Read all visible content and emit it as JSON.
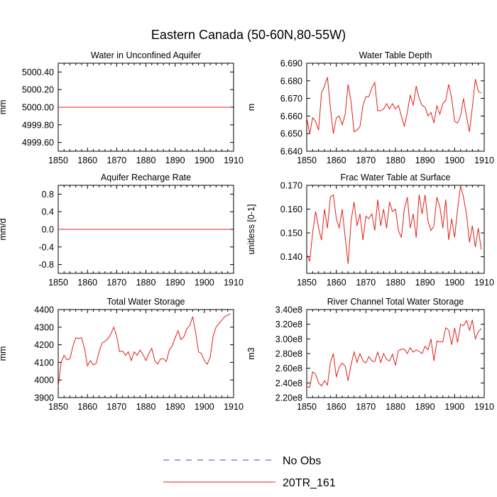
{
  "figure_title": "Eastern Canada (50-60N,80-55W)",
  "series_colors": {
    "obs": "#4444aa",
    "model": "#e0201b"
  },
  "legend": {
    "items": [
      {
        "label": "No Obs",
        "style": "dashed"
      },
      {
        "label": "20TR_161",
        "style": "solid"
      }
    ]
  },
  "chart_data": [
    {
      "type": "line",
      "title": "Water in Unconfined Aquifer",
      "ylabel": "mm",
      "xlim": [
        1850,
        1910
      ],
      "ylim": [
        4999.5,
        5000.5
      ],
      "xticks": [
        1850,
        1860,
        1870,
        1880,
        1890,
        1900,
        1910
      ],
      "yticks": [
        4999.6,
        4999.8,
        5000.0,
        5000.2,
        5000.4
      ],
      "ytick_labels": [
        "4999.60",
        "4999.80",
        "5000.00",
        "5000.20",
        "5000.40"
      ],
      "series": [
        {
          "name": "20TR_161",
          "x_start": 1850,
          "x_step": 1,
          "values": [
            5000.0,
            5000.0,
            5000.0,
            5000.0,
            5000.0,
            5000.0,
            5000.0,
            5000.0,
            5000.0,
            5000.0,
            5000.0,
            5000.0,
            5000.0,
            5000.0,
            5000.0,
            5000.0,
            5000.0,
            5000.0,
            5000.0,
            5000.0,
            5000.0,
            5000.0,
            5000.0,
            5000.0,
            5000.0,
            5000.0,
            5000.0,
            5000.0,
            5000.0,
            5000.0,
            5000.0,
            5000.0,
            5000.0,
            5000.0,
            5000.0,
            5000.0,
            5000.0,
            5000.0,
            5000.0,
            5000.0,
            5000.0,
            5000.0,
            5000.0,
            5000.0,
            5000.0,
            5000.0,
            5000.0,
            5000.0,
            5000.0,
            5000.0,
            5000.0,
            5000.0,
            5000.0,
            5000.0,
            5000.0,
            5000.0,
            5000.0,
            5000.0,
            5000.0,
            5000.0
          ]
        }
      ]
    },
    {
      "type": "line",
      "title": "Water Table Depth",
      "ylabel": "m",
      "xlim": [
        1850,
        1910
      ],
      "ylim": [
        6.64,
        6.69
      ],
      "xticks": [
        1850,
        1860,
        1870,
        1880,
        1890,
        1900,
        1910
      ],
      "yticks": [
        6.64,
        6.65,
        6.66,
        6.67,
        6.68,
        6.69
      ],
      "ytick_labels": [
        "6.640",
        "6.650",
        "6.660",
        "6.670",
        "6.680",
        "6.690"
      ],
      "series": [
        {
          "name": "20TR_161",
          "x_start": 1850,
          "x_step": 1,
          "values": [
            6.659,
            6.65,
            6.659,
            6.657,
            6.652,
            6.673,
            6.677,
            6.682,
            6.665,
            6.65,
            6.659,
            6.66,
            6.655,
            6.661,
            6.678,
            6.668,
            6.651,
            6.652,
            6.654,
            6.666,
            6.671,
            6.671,
            6.676,
            6.679,
            6.663,
            6.663,
            6.664,
            6.667,
            6.664,
            6.667,
            6.664,
            6.666,
            6.66,
            6.654,
            6.662,
            6.672,
            6.666,
            6.677,
            6.67,
            6.666,
            6.665,
            6.66,
            6.662,
            6.656,
            6.666,
            6.661,
            6.667,
            6.669,
            6.678,
            6.67,
            6.657,
            6.656,
            6.66,
            6.67,
            6.66,
            6.651,
            6.665,
            6.681,
            6.674,
            6.673
          ]
        }
      ]
    },
    {
      "type": "line",
      "title": "Aquifer Recharge Rate",
      "ylabel": "mm/d",
      "xlim": [
        1850,
        1910
      ],
      "ylim": [
        -1.0,
        1.0
      ],
      "xticks": [
        1850,
        1860,
        1870,
        1880,
        1890,
        1900,
        1910
      ],
      "yticks": [
        -0.8,
        -0.4,
        0.0,
        0.4,
        0.8
      ],
      "ytick_labels": [
        "-0.8",
        "-0.4",
        "0.0",
        "0.4",
        "0.8"
      ],
      "series": [
        {
          "name": "20TR_161",
          "x_start": 1850,
          "x_step": 1,
          "values": [
            0,
            0,
            0,
            0,
            0,
            0,
            0,
            0,
            0,
            0,
            0,
            0,
            0,
            0,
            0,
            0,
            0,
            0,
            0,
            0,
            0,
            0,
            0,
            0,
            0,
            0,
            0,
            0,
            0,
            0,
            0,
            0,
            0,
            0,
            0,
            0,
            0,
            0,
            0,
            0,
            0,
            0,
            0,
            0,
            0,
            0,
            0,
            0,
            0,
            0,
            0,
            0,
            0,
            0,
            0,
            0,
            0,
            0,
            0,
            0
          ]
        }
      ]
    },
    {
      "type": "line",
      "title": "Frac Water Table at Surface",
      "ylabel": "unitless [0-1]",
      "xlim": [
        1850,
        1910
      ],
      "ylim": [
        0.133,
        0.17
      ],
      "xticks": [
        1850,
        1860,
        1870,
        1880,
        1890,
        1900,
        1910
      ],
      "yticks": [
        0.14,
        0.15,
        0.16,
        0.17
      ],
      "ytick_labels": [
        "0.140",
        "0.150",
        "0.160",
        "0.170"
      ],
      "series": [
        {
          "name": "20TR_161",
          "x_start": 1850,
          "x_step": 1,
          "values": [
            0.141,
            0.138,
            0.15,
            0.159,
            0.152,
            0.147,
            0.16,
            0.152,
            0.165,
            0.166,
            0.156,
            0.152,
            0.16,
            0.148,
            0.137,
            0.155,
            0.163,
            0.153,
            0.158,
            0.147,
            0.157,
            0.156,
            0.158,
            0.151,
            0.164,
            0.153,
            0.16,
            0.152,
            0.163,
            0.159,
            0.16,
            0.151,
            0.148,
            0.16,
            0.165,
            0.152,
            0.158,
            0.148,
            0.166,
            0.158,
            0.166,
            0.155,
            0.151,
            0.153,
            0.165,
            0.161,
            0.152,
            0.164,
            0.147,
            0.156,
            0.148,
            0.16,
            0.17,
            0.165,
            0.158,
            0.146,
            0.153,
            0.144,
            0.152,
            0.143
          ]
        }
      ]
    },
    {
      "type": "line",
      "title": "Total Water Storage",
      "ylabel": "mm",
      "xlim": [
        1850,
        1910
      ],
      "ylim": [
        3900,
        4400
      ],
      "xticks": [
        1850,
        1860,
        1870,
        1880,
        1890,
        1900,
        1910
      ],
      "yticks": [
        3900,
        4000,
        4100,
        4200,
        4300,
        4400
      ],
      "ytick_labels": [
        "3900",
        "4000",
        "4100",
        "4200",
        "4300",
        "4400"
      ],
      "series": [
        {
          "name": "20TR_161",
          "x_start": 1850,
          "x_step": 1,
          "values": [
            3960,
            4100,
            4140,
            4115,
            4120,
            4190,
            4240,
            4235,
            4240,
            4180,
            4080,
            4110,
            4085,
            4095,
            4160,
            4210,
            4220,
            4235,
            4260,
            4300,
            4250,
            4160,
            4165,
            4140,
            4160,
            4110,
            4160,
            4140,
            4170,
            4145,
            4110,
            4150,
            4180,
            4110,
            4090,
            4120,
            4120,
            4105,
            4170,
            4195,
            4240,
            4280,
            4230,
            4245,
            4290,
            4310,
            4360,
            4270,
            4160,
            4150,
            4110,
            4090,
            4130,
            4250,
            4300,
            4320,
            4340,
            4360,
            4370,
            4375
          ]
        }
      ]
    },
    {
      "type": "line",
      "title": "River Channel Total Water Storage",
      "ylabel": "m3",
      "xlim": [
        1850,
        1910
      ],
      "ylim": [
        220000000,
        340000000
      ],
      "xticks": [
        1850,
        1860,
        1870,
        1880,
        1890,
        1900,
        1910
      ],
      "yticks": [
        220000000,
        240000000,
        260000000,
        280000000,
        300000000,
        320000000,
        340000000
      ],
      "ytick_labels": [
        "2.20e8",
        "2.40e8",
        "2.60e8",
        "2.80e8",
        "3.00e8",
        "3.20e8",
        "3.40e8"
      ],
      "series": [
        {
          "name": "20TR_161",
          "x_start": 1850,
          "x_step": 1,
          "values": [
            235000000,
            234000000,
            255000000,
            252000000,
            240000000,
            236000000,
            243000000,
            237000000,
            268000000,
            280000000,
            248000000,
            262000000,
            267000000,
            263000000,
            243000000,
            265000000,
            282000000,
            268000000,
            280000000,
            270000000,
            267000000,
            276000000,
            270000000,
            269000000,
            282000000,
            268000000,
            280000000,
            272000000,
            270000000,
            279000000,
            264000000,
            284000000,
            286000000,
            286000000,
            280000000,
            288000000,
            282000000,
            285000000,
            283000000,
            280000000,
            290000000,
            285000000,
            300000000,
            270000000,
            297000000,
            296000000,
            296000000,
            315000000,
            312000000,
            292000000,
            315000000,
            295000000,
            320000000,
            318000000,
            325000000,
            312000000,
            326000000,
            300000000,
            310000000,
            314000000
          ]
        }
      ]
    }
  ]
}
